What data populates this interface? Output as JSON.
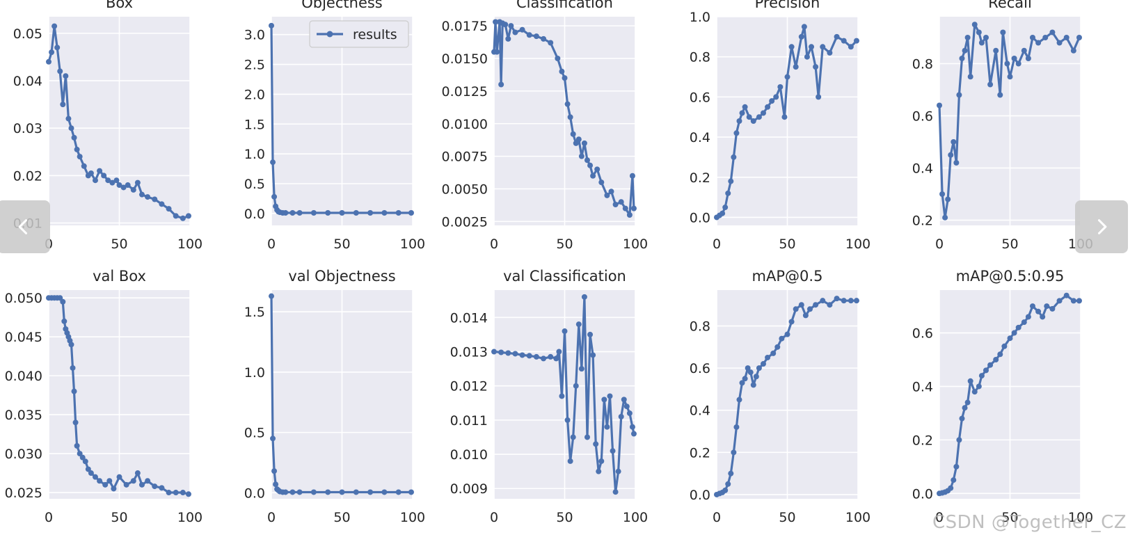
{
  "viewer": {
    "prev_icon": "chevron-left-icon",
    "next_icon": "chevron-right-icon"
  },
  "watermark": "CSDN @Together_CZ",
  "theme": {
    "line_color": "#4c72b0",
    "panel_bg": "#eaeaf2",
    "grid_color": "#ffffff",
    "text_color": "#262626"
  },
  "chart_data": [
    {
      "type": "line",
      "title": "Box",
      "xlabel": "",
      "ylabel": "",
      "xlim": [
        0,
        100
      ],
      "ylim": [
        0.0095,
        0.0535
      ],
      "xticks": [
        0,
        50,
        100
      ],
      "yticks": [
        0.01,
        0.02,
        0.03,
        0.04,
        0.05
      ],
      "ytick_labels": [
        "0.01",
        "0.02",
        "0.03",
        "0.04",
        "0.05"
      ],
      "legend": null,
      "series": [
        {
          "x": [
            0,
            2,
            4,
            6,
            8,
            10,
            12,
            14,
            16,
            18,
            20,
            22,
            25,
            28,
            30,
            33,
            36,
            39,
            42,
            45,
            48,
            50,
            53,
            56,
            60,
            63,
            66,
            70,
            75,
            80,
            85,
            90,
            95,
            99
          ],
          "y": [
            0.044,
            0.046,
            0.0515,
            0.047,
            0.042,
            0.035,
            0.041,
            0.032,
            0.03,
            0.028,
            0.0255,
            0.024,
            0.022,
            0.02,
            0.0205,
            0.019,
            0.021,
            0.02,
            0.019,
            0.0185,
            0.019,
            0.018,
            0.0175,
            0.018,
            0.017,
            0.0185,
            0.016,
            0.0155,
            0.015,
            0.014,
            0.013,
            0.0115,
            0.011,
            0.0115
          ]
        }
      ]
    },
    {
      "type": "line",
      "title": "Objectness",
      "xlabel": "",
      "ylabel": "",
      "xlim": [
        0,
        100
      ],
      "ylim": [
        -0.2,
        3.3
      ],
      "xticks": [
        0,
        50,
        100
      ],
      "yticks": [
        0.0,
        0.5,
        1.0,
        1.5,
        2.0,
        2.5,
        3.0
      ],
      "ytick_labels": [
        "0.0",
        "0.5",
        "1.0",
        "1.5",
        "2.0",
        "2.5",
        "3.0"
      ],
      "legend": {
        "position": "top-right",
        "entries": [
          "results"
        ]
      },
      "series": [
        {
          "name": "results",
          "x": [
            0,
            1,
            2,
            3,
            4,
            5,
            6,
            8,
            10,
            15,
            20,
            30,
            40,
            50,
            60,
            70,
            80,
            90,
            99
          ],
          "y": [
            3.15,
            0.86,
            0.28,
            0.12,
            0.06,
            0.03,
            0.02,
            0.01,
            0.01,
            0.01,
            0.01,
            0.01,
            0.01,
            0.01,
            0.01,
            0.01,
            0.01,
            0.01,
            0.01
          ]
        }
      ]
    },
    {
      "type": "line",
      "title": "Classification",
      "xlabel": "",
      "ylabel": "",
      "xlim": [
        0,
        100
      ],
      "ylim": [
        0.0022,
        0.0182
      ],
      "xticks": [
        0,
        50,
        100
      ],
      "yticks": [
        0.0025,
        0.005,
        0.0075,
        0.01,
        0.0125,
        0.015,
        0.0175
      ],
      "ytick_labels": [
        "0.0025",
        "0.0050",
        "0.0075",
        "0.0100",
        "0.0125",
        "0.0150",
        "0.0175"
      ],
      "legend": null,
      "series": [
        {
          "x": [
            0,
            1,
            2,
            4,
            5,
            6,
            8,
            10,
            12,
            15,
            20,
            25,
            30,
            35,
            40,
            45,
            48,
            50,
            52,
            54,
            56,
            58,
            60,
            62,
            64,
            66,
            68,
            70,
            73,
            76,
            80,
            83,
            86,
            90,
            93,
            96,
            98,
            99
          ],
          "y": [
            0.0155,
            0.0178,
            0.0155,
            0.0178,
            0.013,
            0.0177,
            0.0176,
            0.0165,
            0.0175,
            0.017,
            0.0172,
            0.0168,
            0.0167,
            0.0165,
            0.0162,
            0.015,
            0.014,
            0.0135,
            0.0115,
            0.0105,
            0.0092,
            0.0085,
            0.0088,
            0.0075,
            0.0085,
            0.0072,
            0.0068,
            0.006,
            0.0065,
            0.0055,
            0.0045,
            0.0048,
            0.0038,
            0.004,
            0.0035,
            0.003,
            0.006,
            0.0035
          ]
        }
      ]
    },
    {
      "type": "line",
      "title": "Precision",
      "xlabel": "",
      "ylabel": "",
      "xlim": [
        0,
        100
      ],
      "ylim": [
        -0.04,
        1.0
      ],
      "xticks": [
        0,
        50,
        100
      ],
      "yticks": [
        0.0,
        0.2,
        0.4,
        0.6,
        0.8,
        1.0
      ],
      "ytick_labels": [
        "0.0",
        "0.2",
        "0.4",
        "0.6",
        "0.8",
        "1.0"
      ],
      "legend": null,
      "series": [
        {
          "x": [
            0,
            2,
            4,
            6,
            8,
            10,
            12,
            14,
            16,
            18,
            20,
            23,
            26,
            30,
            33,
            36,
            39,
            42,
            45,
            48,
            50,
            53,
            56,
            60,
            62,
            64,
            67,
            70,
            72,
            75,
            80,
            85,
            90,
            95,
            99
          ],
          "y": [
            0.0,
            0.01,
            0.02,
            0.05,
            0.12,
            0.18,
            0.3,
            0.42,
            0.48,
            0.52,
            0.55,
            0.5,
            0.48,
            0.5,
            0.52,
            0.55,
            0.58,
            0.6,
            0.65,
            0.5,
            0.7,
            0.85,
            0.75,
            0.9,
            0.95,
            0.8,
            0.85,
            0.75,
            0.6,
            0.85,
            0.82,
            0.9,
            0.88,
            0.85,
            0.88
          ]
        }
      ]
    },
    {
      "type": "line",
      "title": "Recall",
      "xlabel": "",
      "ylabel": "",
      "xlim": [
        0,
        100
      ],
      "ylim": [
        0.18,
        0.98
      ],
      "xticks": [
        0,
        50,
        100
      ],
      "yticks": [
        0.2,
        0.4,
        0.6,
        0.8
      ],
      "ytick_labels": [
        "0.2",
        "0.4",
        "0.6",
        "0.8"
      ],
      "legend": null,
      "series": [
        {
          "x": [
            0,
            2,
            4,
            6,
            8,
            10,
            12,
            14,
            16,
            18,
            20,
            22,
            25,
            28,
            30,
            33,
            36,
            40,
            43,
            45,
            48,
            50,
            53,
            56,
            60,
            63,
            66,
            70,
            75,
            80,
            85,
            90,
            95,
            99
          ],
          "y": [
            0.64,
            0.3,
            0.21,
            0.28,
            0.45,
            0.5,
            0.42,
            0.68,
            0.82,
            0.85,
            0.9,
            0.75,
            0.95,
            0.92,
            0.88,
            0.9,
            0.72,
            0.85,
            0.68,
            0.92,
            0.8,
            0.75,
            0.82,
            0.8,
            0.85,
            0.82,
            0.9,
            0.88,
            0.9,
            0.92,
            0.88,
            0.9,
            0.85,
            0.9
          ]
        }
      ]
    },
    {
      "type": "line",
      "title": "val Box",
      "xlabel": "",
      "ylabel": "",
      "xlim": [
        0,
        100
      ],
      "ylim": [
        0.0242,
        0.051
      ],
      "xticks": [
        0,
        50,
        100
      ],
      "yticks": [
        0.025,
        0.03,
        0.035,
        0.04,
        0.045,
        0.05
      ],
      "ytick_labels": [
        "0.025",
        "0.030",
        "0.035",
        "0.040",
        "0.045",
        "0.050"
      ],
      "legend": null,
      "series": [
        {
          "x": [
            0,
            2,
            4,
            6,
            8,
            10,
            11,
            12,
            13,
            14,
            15,
            16,
            17,
            18,
            19,
            20,
            22,
            24,
            26,
            28,
            30,
            33,
            36,
            40,
            43,
            46,
            50,
            55,
            60,
            63,
            66,
            70,
            75,
            80,
            85,
            90,
            95,
            99
          ],
          "y": [
            0.05,
            0.05,
            0.05,
            0.05,
            0.05,
            0.0495,
            0.047,
            0.046,
            0.0455,
            0.045,
            0.0445,
            0.044,
            0.041,
            0.038,
            0.034,
            0.031,
            0.03,
            0.0295,
            0.029,
            0.028,
            0.0275,
            0.027,
            0.0265,
            0.026,
            0.0265,
            0.0255,
            0.027,
            0.026,
            0.0265,
            0.0275,
            0.026,
            0.0265,
            0.0258,
            0.0256,
            0.025,
            0.025,
            0.025,
            0.0248
          ]
        }
      ]
    },
    {
      "type": "line",
      "title": "val Objectness",
      "xlabel": "",
      "ylabel": "",
      "xlim": [
        0,
        100
      ],
      "ylim": [
        -0.05,
        1.68
      ],
      "xticks": [
        0,
        50,
        100
      ],
      "yticks": [
        0.0,
        0.5,
        1.0,
        1.5
      ],
      "ytick_labels": [
        "0.0",
        "0.5",
        "1.0",
        "1.5"
      ],
      "legend": null,
      "series": [
        {
          "x": [
            0,
            1,
            2,
            3,
            4,
            5,
            6,
            8,
            10,
            15,
            20,
            30,
            40,
            50,
            60,
            70,
            80,
            90,
            99
          ],
          "y": [
            1.63,
            0.45,
            0.18,
            0.07,
            0.03,
            0.02,
            0.01,
            0.005,
            0.005,
            0.005,
            0.005,
            0.005,
            0.005,
            0.005,
            0.005,
            0.005,
            0.005,
            0.005,
            0.005
          ]
        }
      ]
    },
    {
      "type": "line",
      "title": "val Classification",
      "xlabel": "",
      "ylabel": "",
      "xlim": [
        0,
        100
      ],
      "ylim": [
        0.0087,
        0.0148
      ],
      "xticks": [
        0,
        50,
        100
      ],
      "yticks": [
        0.009,
        0.01,
        0.011,
        0.012,
        0.013,
        0.014
      ],
      "ytick_labels": [
        "0.009",
        "0.010",
        "0.011",
        "0.012",
        "0.013",
        "0.014"
      ],
      "legend": null,
      "series": [
        {
          "x": [
            0,
            5,
            10,
            15,
            20,
            25,
            30,
            35,
            40,
            44,
            46,
            48,
            50,
            52,
            54,
            56,
            58,
            60,
            62,
            64,
            66,
            68,
            70,
            72,
            74,
            76,
            78,
            80,
            82,
            84,
            86,
            88,
            90,
            92,
            94,
            96,
            98,
            99
          ],
          "y": [
            0.013,
            0.01298,
            0.01296,
            0.01294,
            0.0129,
            0.01288,
            0.01285,
            0.0128,
            0.01285,
            0.0128,
            0.013,
            0.0117,
            0.0136,
            0.011,
            0.0098,
            0.0105,
            0.012,
            0.0138,
            0.0125,
            0.0146,
            0.0105,
            0.0135,
            0.0129,
            0.0103,
            0.0095,
            0.0098,
            0.0116,
            0.0108,
            0.0117,
            0.0101,
            0.0089,
            0.0095,
            0.0111,
            0.0116,
            0.0114,
            0.0112,
            0.0108,
            0.0106
          ]
        }
      ]
    },
    {
      "type": "line",
      "title": "mAP@0.5",
      "xlabel": "",
      "ylabel": "",
      "xlim": [
        0,
        100
      ],
      "ylim": [
        -0.02,
        0.97
      ],
      "xticks": [
        0,
        50,
        100
      ],
      "yticks": [
        0.0,
        0.2,
        0.4,
        0.6,
        0.8
      ],
      "ytick_labels": [
        "0.0",
        "0.2",
        "0.4",
        "0.6",
        "0.8"
      ],
      "legend": null,
      "series": [
        {
          "x": [
            0,
            2,
            4,
            6,
            8,
            10,
            12,
            14,
            16,
            18,
            20,
            22,
            24,
            26,
            28,
            30,
            33,
            36,
            40,
            43,
            46,
            50,
            53,
            56,
            60,
            63,
            66,
            70,
            75,
            80,
            85,
            90,
            95,
            99
          ],
          "y": [
            0.0,
            0.005,
            0.01,
            0.02,
            0.05,
            0.1,
            0.2,
            0.32,
            0.45,
            0.53,
            0.55,
            0.6,
            0.58,
            0.52,
            0.56,
            0.6,
            0.62,
            0.65,
            0.67,
            0.7,
            0.74,
            0.76,
            0.82,
            0.88,
            0.9,
            0.85,
            0.88,
            0.9,
            0.92,
            0.9,
            0.93,
            0.92,
            0.92,
            0.92
          ]
        }
      ]
    },
    {
      "type": "line",
      "title": "mAP@0.5:0.95",
      "xlabel": "",
      "ylabel": "",
      "xlim": [
        0,
        100
      ],
      "ylim": [
        -0.02,
        0.76
      ],
      "xticks": [
        0,
        50,
        100
      ],
      "yticks": [
        0.0,
        0.2,
        0.4,
        0.6
      ],
      "ytick_labels": [
        "0.0",
        "0.2",
        "0.4",
        "0.6"
      ],
      "legend": null,
      "series": [
        {
          "x": [
            0,
            2,
            4,
            6,
            8,
            10,
            12,
            14,
            16,
            18,
            20,
            22,
            25,
            28,
            30,
            33,
            36,
            40,
            43,
            46,
            50,
            53,
            56,
            60,
            63,
            66,
            70,
            73,
            76,
            80,
            85,
            90,
            95,
            99
          ],
          "y": [
            0.0,
            0.002,
            0.005,
            0.01,
            0.02,
            0.05,
            0.1,
            0.2,
            0.28,
            0.32,
            0.34,
            0.42,
            0.38,
            0.4,
            0.44,
            0.46,
            0.48,
            0.5,
            0.52,
            0.55,
            0.58,
            0.6,
            0.62,
            0.64,
            0.66,
            0.7,
            0.68,
            0.66,
            0.7,
            0.69,
            0.72,
            0.74,
            0.72,
            0.72
          ]
        }
      ]
    }
  ]
}
